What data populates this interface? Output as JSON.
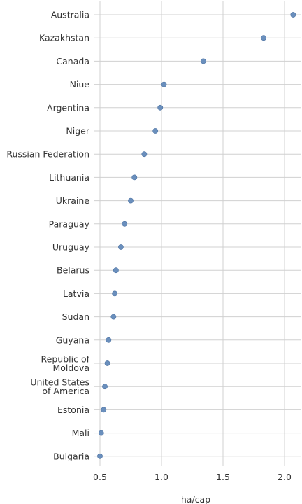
{
  "chart_data": {
    "type": "scatter",
    "orientation": "horizontal-dot-plot",
    "categories": [
      "Australia",
      "Kazakhstan",
      "Canada",
      "Niue",
      "Argentina",
      "Niger",
      "Russian Federation",
      "Lithuania",
      "Ukraine",
      "Paraguay",
      "Uruguay",
      "Belarus",
      "Latvia",
      "Sudan",
      "Guyana",
      "Republic of Moldova",
      "United States of America",
      "Estonia",
      "Mali",
      "Bulgaria"
    ],
    "category_lines": [
      [
        "Australia"
      ],
      [
        "Kazakhstan"
      ],
      [
        "Canada"
      ],
      [
        "Niue"
      ],
      [
        "Argentina"
      ],
      [
        "Niger"
      ],
      [
        "Russian Federation"
      ],
      [
        "Lithuania"
      ],
      [
        "Ukraine"
      ],
      [
        "Paraguay"
      ],
      [
        "Uruguay"
      ],
      [
        "Belarus"
      ],
      [
        "Latvia"
      ],
      [
        "Sudan"
      ],
      [
        "Guyana"
      ],
      [
        "Republic of",
        "Moldova"
      ],
      [
        "United States",
        "of America"
      ],
      [
        "Estonia"
      ],
      [
        "Mali"
      ],
      [
        "Bulgaria"
      ]
    ],
    "values": [
      2.07,
      1.83,
      1.34,
      1.02,
      0.99,
      0.95,
      0.86,
      0.78,
      0.75,
      0.7,
      0.67,
      0.63,
      0.62,
      0.61,
      0.57,
      0.56,
      0.54,
      0.53,
      0.51,
      0.5
    ],
    "xlabel": "ha/cap",
    "xlim": [
      0.5,
      2.13
    ],
    "xticks": [
      0.5,
      1.0,
      1.5,
      2.0
    ],
    "xtick_labels": [
      "0.5",
      "1.0",
      "1.5",
      "2.0"
    ],
    "grid": true,
    "colors": {
      "point": "#6a8fbd",
      "point_edge": "#4f74a3",
      "grid": "#d0d0d0"
    }
  }
}
